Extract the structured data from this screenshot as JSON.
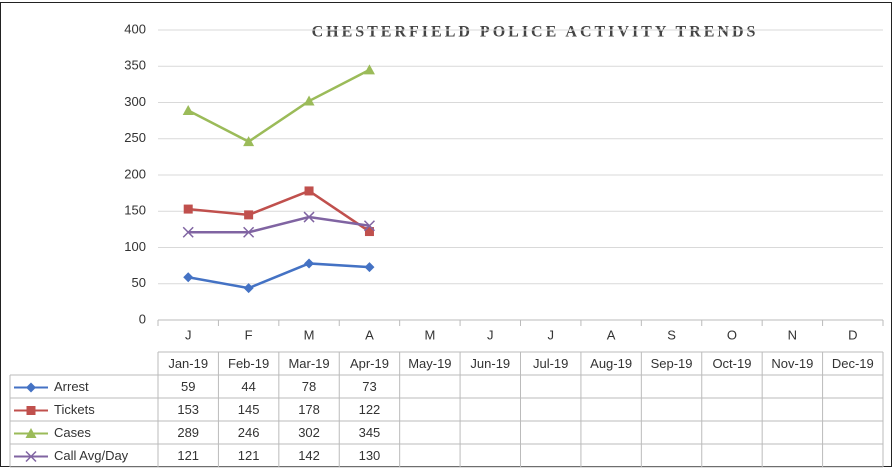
{
  "chart_data": {
    "type": "line",
    "title": "CHESTERFIELD POLICE ACTIVITY TRENDS",
    "categories": [
      "J",
      "F",
      "M",
      "A",
      "M",
      "J",
      "J",
      "A",
      "S",
      "O",
      "N",
      "D"
    ],
    "table_header": [
      "Jan-19",
      "Feb-19",
      "Mar-19",
      "Apr-19",
      "May-19",
      "Jun-19",
      "Jul-19",
      "Aug-19",
      "Sep-19",
      "Oct-19",
      "Nov-19",
      "Dec-19"
    ],
    "series": [
      {
        "name": "Arrest",
        "color": "#4472c4",
        "marker": "diamond",
        "values": [
          59,
          44,
          78,
          73,
          null,
          null,
          null,
          null,
          null,
          null,
          null,
          null
        ]
      },
      {
        "name": "Tickets",
        "color": "#c0504d",
        "marker": "square",
        "values": [
          153,
          145,
          178,
          122,
          null,
          null,
          null,
          null,
          null,
          null,
          null,
          null
        ]
      },
      {
        "name": "Cases",
        "color": "#9bbb59",
        "marker": "triangle",
        "values": [
          289,
          246,
          302,
          345,
          null,
          null,
          null,
          null,
          null,
          null,
          null,
          null
        ]
      },
      {
        "name": "Call Avg/Day",
        "color": "#8064a2",
        "marker": "x",
        "values": [
          121,
          121,
          142,
          130,
          null,
          null,
          null,
          null,
          null,
          null,
          null,
          null
        ]
      }
    ],
    "ylim": [
      0,
      400
    ],
    "yticks": [
      0,
      50,
      100,
      150,
      200,
      250,
      300,
      350,
      400
    ],
    "grid": true
  }
}
